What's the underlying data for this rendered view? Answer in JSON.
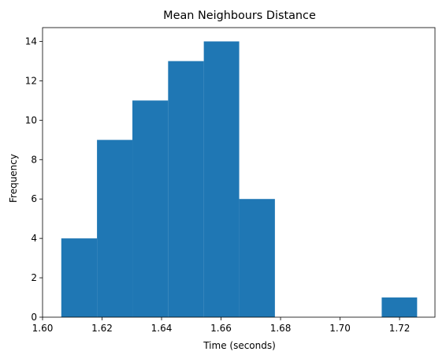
{
  "chart_data": {
    "type": "bar",
    "title": "Mean Neighbours Distance",
    "xlabel": "Time (seconds)",
    "ylabel": "Frequency",
    "bin_edges": [
      1.6063,
      1.6183,
      1.6302,
      1.6422,
      1.6542,
      1.6661,
      1.6781,
      1.69,
      1.702,
      1.714,
      1.7259
    ],
    "values": [
      4,
      9,
      11,
      13,
      14,
      6,
      0,
      0,
      0,
      1
    ],
    "xlim": [
      1.6,
      1.7319
    ],
    "ylim": [
      0,
      14.7
    ],
    "x_ticks": [
      {
        "value": 1.6,
        "label": "1.60"
      },
      {
        "value": 1.62,
        "label": "1.62"
      },
      {
        "value": 1.64,
        "label": "1.64"
      },
      {
        "value": 1.66,
        "label": "1.66"
      },
      {
        "value": 1.68,
        "label": "1.68"
      },
      {
        "value": 1.7,
        "label": "1.70"
      },
      {
        "value": 1.72,
        "label": "1.72"
      }
    ],
    "y_ticks": [
      {
        "value": 0,
        "label": "0"
      },
      {
        "value": 2,
        "label": "2"
      },
      {
        "value": 4,
        "label": "4"
      },
      {
        "value": 6,
        "label": "6"
      },
      {
        "value": 8,
        "label": "8"
      },
      {
        "value": 10,
        "label": "10"
      },
      {
        "value": 12,
        "label": "12"
      },
      {
        "value": 14,
        "label": "14"
      }
    ],
    "bar_color": "#1f77b4",
    "grid": false
  }
}
